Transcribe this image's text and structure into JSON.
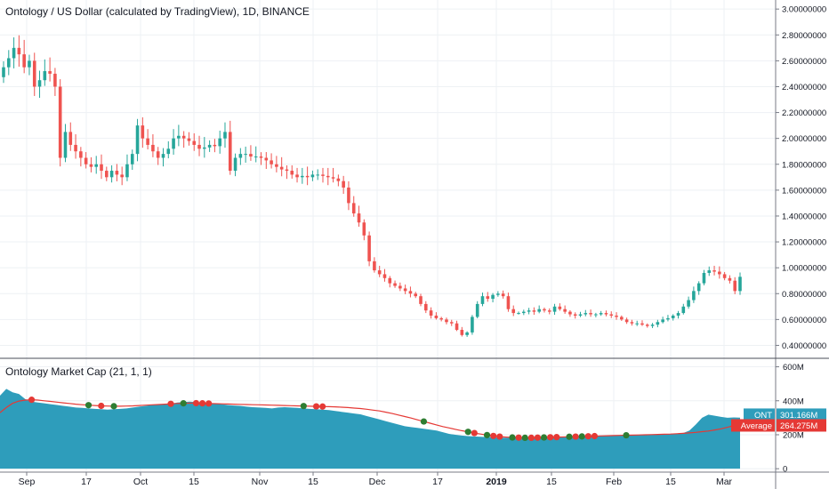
{
  "header": {
    "title": "Ontology / US Dollar (calculated by TradingView), 1D, BINANCE",
    "indicator_title": "Ontology Market Cap (21, 1, 1)"
  },
  "colors": {
    "up": "#26a69a",
    "down": "#ef5350",
    "area": "#2e9dbb",
    "average_line": "#e53935",
    "dot_green": "#2e7d32",
    "dot_red": "#e53935",
    "grid": "#eef1f4",
    "axis": "#787b86"
  },
  "chart_data": [
    {
      "type": "candlestick",
      "title": "Ontology / US Dollar (calculated by TradingView), 1D, BINANCE",
      "y_scale": "linear",
      "ylim": [
        0.3,
        3.07
      ],
      "y_ticks": [
        "3.00000000",
        "2.80000000",
        "2.60000000",
        "2.40000000",
        "2.20000000",
        "2.00000000",
        "1.80000000",
        "1.60000000",
        "1.40000000",
        "1.20000000",
        "1.00000000",
        "0.80000000",
        "0.60000000",
        "0.40000000"
      ],
      "x_labels": [
        "Sep",
        "17",
        "Oct",
        "15",
        "Nov",
        "15",
        "Dec",
        "17",
        "2019",
        "15",
        "Feb",
        "15",
        "Mar"
      ],
      "x_label_bold": "2019",
      "grid": true,
      "close_approx": [
        2.55,
        2.62,
        2.7,
        2.65,
        2.55,
        2.6,
        2.4,
        2.45,
        2.52,
        2.5,
        2.4,
        1.85,
        2.05,
        1.95,
        1.9,
        1.85,
        1.8,
        1.78,
        1.8,
        1.75,
        1.7,
        1.75,
        1.72,
        1.7,
        1.8,
        1.88,
        2.1,
        2.0,
        1.95,
        1.9,
        1.85,
        1.88,
        1.92,
        2.0,
        2.02,
        2.0,
        1.98,
        1.95,
        1.92,
        1.93,
        1.95,
        1.94,
        2.0,
        2.05,
        1.75,
        1.85,
        1.88,
        1.88,
        1.86,
        1.86,
        1.85,
        1.83,
        1.8,
        1.78,
        1.76,
        1.75,
        1.72,
        1.7,
        1.71,
        1.7,
        1.72,
        1.72,
        1.71,
        1.7,
        1.69,
        1.67,
        1.62,
        1.5,
        1.42,
        1.35,
        1.25,
        1.05,
        0.98,
        0.95,
        0.92,
        0.88,
        0.86,
        0.84,
        0.82,
        0.8,
        0.78,
        0.72,
        0.67,
        0.63,
        0.61,
        0.6,
        0.58,
        0.57,
        0.52,
        0.48,
        0.5,
        0.62,
        0.72,
        0.78,
        0.76,
        0.79,
        0.8,
        0.78,
        0.68,
        0.65,
        0.65,
        0.66,
        0.67,
        0.66,
        0.68,
        0.67,
        0.66,
        0.7,
        0.68,
        0.66,
        0.64,
        0.63,
        0.64,
        0.65,
        0.64,
        0.64,
        0.65,
        0.64,
        0.63,
        0.62,
        0.6,
        0.58,
        0.57,
        0.57,
        0.56,
        0.55,
        0.56,
        0.58,
        0.6,
        0.61,
        0.63,
        0.65,
        0.7,
        0.75,
        0.82,
        0.88,
        0.96,
        0.98,
        0.97,
        0.95,
        0.92,
        0.9,
        0.82,
        0.93
      ]
    },
    {
      "type": "area",
      "title": "Ontology Market Cap (21, 1, 1)",
      "ylim": [
        -20,
        650
      ],
      "y_ticks": [
        "600M",
        "400M",
        "200M",
        "0"
      ],
      "series": [
        {
          "name": "ONT",
          "value_label": "301.166M",
          "color": "#2e9dbb",
          "values_m": [
            430,
            470,
            450,
            440,
            410,
            395,
            390,
            385,
            380,
            375,
            370,
            365,
            360,
            358,
            355,
            352,
            350,
            348,
            350,
            352,
            355,
            360,
            365,
            370,
            375,
            380,
            378,
            382,
            390,
            392,
            395,
            392,
            390,
            385,
            382,
            380,
            375,
            372,
            370,
            365,
            362,
            360,
            358,
            355,
            360,
            362,
            360,
            358,
            355,
            352,
            350,
            348,
            345,
            340,
            335,
            330,
            325,
            320,
            310,
            300,
            290,
            280,
            270,
            260,
            250,
            245,
            240,
            235,
            230,
            225,
            215,
            205,
            200,
            195,
            192,
            190,
            188,
            186,
            185,
            183,
            182,
            182,
            180,
            180,
            182,
            184,
            186,
            186,
            187,
            188,
            190,
            190,
            192,
            192,
            194,
            195,
            195,
            196,
            196,
            197,
            198,
            199,
            200,
            201,
            202,
            203,
            204,
            206,
            210,
            225,
            260,
            300,
            318,
            312,
            305,
            300,
            302,
            301
          ]
        },
        {
          "name": "Average",
          "value_label": "264.275M",
          "color": "#e53935",
          "values_m": [
            330,
            360,
            385,
            398,
            404,
            406,
            404,
            400,
            396,
            392,
            388,
            384,
            380,
            377,
            374,
            372,
            370,
            369,
            368,
            368,
            369,
            370,
            372,
            374,
            376,
            378,
            380,
            382,
            384,
            385,
            386,
            386,
            385,
            384,
            383,
            382,
            381,
            380,
            379,
            378,
            377,
            376,
            375,
            374,
            373,
            372,
            371,
            370,
            369,
            368,
            367,
            366,
            365,
            364,
            362,
            360,
            357,
            354,
            350,
            345,
            340,
            333,
            325,
            316,
            307,
            298,
            288,
            278,
            268,
            258,
            248,
            240,
            232,
            224,
            217,
            210,
            204,
            198,
            193,
            189,
            186,
            184,
            183,
            182,
            182,
            183,
            184,
            185,
            186,
            187,
            188,
            189,
            190,
            191,
            192,
            193,
            194,
            195,
            196,
            197,
            198,
            199,
            200,
            201,
            202,
            203,
            204,
            206,
            208,
            211,
            214,
            218,
            222,
            228,
            235,
            244,
            254,
            264
          ]
        }
      ],
      "markers": [
        {
          "color": "red",
          "index": 5
        },
        {
          "color": "green",
          "index": 14
        },
        {
          "color": "red",
          "index": 16
        },
        {
          "color": "green",
          "index": 18
        },
        {
          "color": "red",
          "index": 27
        },
        {
          "color": "green",
          "index": 29
        },
        {
          "color": "red",
          "index": 31
        },
        {
          "color": "red",
          "index": 32
        },
        {
          "color": "red",
          "index": 33
        },
        {
          "color": "green",
          "index": 48
        },
        {
          "color": "red",
          "index": 50
        },
        {
          "color": "red",
          "index": 51
        },
        {
          "color": "green",
          "index": 67
        },
        {
          "color": "green",
          "index": 74
        },
        {
          "color": "red",
          "index": 75
        },
        {
          "color": "green",
          "index": 77
        },
        {
          "color": "red",
          "index": 78
        },
        {
          "color": "red",
          "index": 79
        },
        {
          "color": "green",
          "index": 81
        },
        {
          "color": "red",
          "index": 82
        },
        {
          "color": "green",
          "index": 83
        },
        {
          "color": "red",
          "index": 84
        },
        {
          "color": "red",
          "index": 85
        },
        {
          "color": "green",
          "index": 86
        },
        {
          "color": "red",
          "index": 87
        },
        {
          "color": "red",
          "index": 88
        },
        {
          "color": "green",
          "index": 90
        },
        {
          "color": "red",
          "index": 91
        },
        {
          "color": "green",
          "index": 92
        },
        {
          "color": "red",
          "index": 93
        },
        {
          "color": "red",
          "index": 94
        },
        {
          "color": "green",
          "index": 99
        }
      ]
    }
  ]
}
